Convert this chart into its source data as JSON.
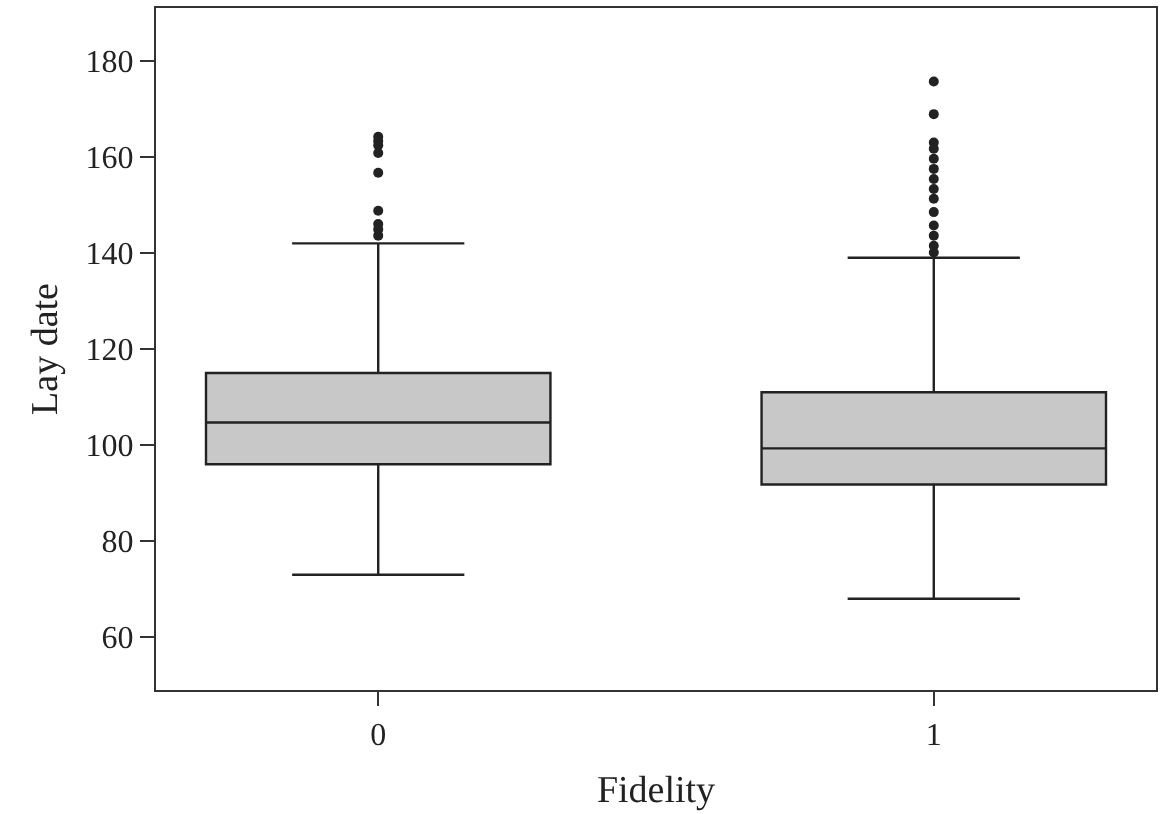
{
  "chart_data": {
    "type": "box",
    "xlabel": "Fidelity",
    "ylabel": "Lay date",
    "categories": [
      "0",
      "1"
    ],
    "ylim": [
      49,
      191
    ],
    "yticks": [
      60,
      80,
      100,
      120,
      140,
      160,
      180
    ],
    "grid": false,
    "series": [
      {
        "color": "#c8c8c8",
        "boxes": [
          {
            "low": 73,
            "q1": 96,
            "median": 104.7,
            "q3": 115,
            "high": 142,
            "outliers": [
              164.2,
              163.3,
              162.4,
              160.8,
              156.7,
              148.8,
              146,
              144.9,
              143.6
            ]
          },
          {
            "low": 68,
            "q1": 91.8,
            "median": 99.3,
            "q3": 111,
            "high": 139,
            "outliers": [
              175.7,
              168.9,
              163,
              161.7,
              159.6,
              157.5,
              155.4,
              153.3,
              151.3,
              148.5,
              145.7,
              143.6,
              141.5,
              140.1
            ]
          }
        ]
      }
    ]
  }
}
